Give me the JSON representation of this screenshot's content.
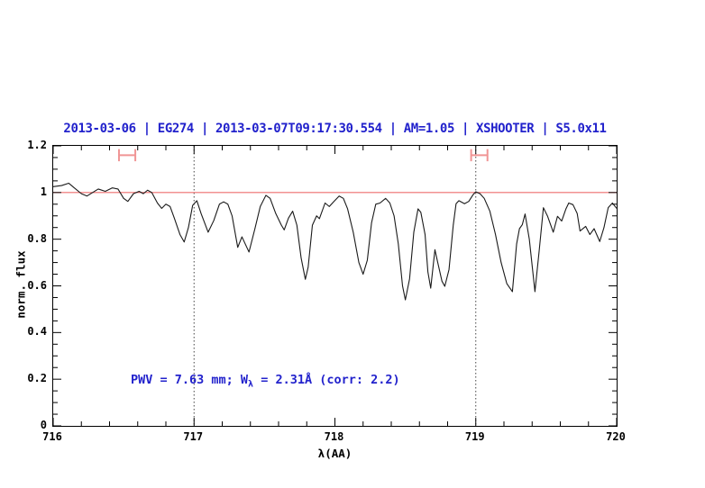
{
  "colors": {
    "accent_blue": "#2222cc",
    "reference_red": "#ee6e6e",
    "marker_red": "#f09595",
    "spectrum_black": "#1a1a1a",
    "guide_gray": "#444444"
  },
  "chart_data": {
    "type": "line",
    "title": "2013-03-06 | EG274 | 2013-03-07T09:17:30.554 | AM=1.05 | XSHOOTER | S5.0x11",
    "xlabel": "λ(AA)",
    "ylabel": "norm. flux",
    "xlim": [
      716,
      720
    ],
    "ylim": [
      0,
      1.2
    ],
    "x_major_ticks": [
      716,
      717,
      718,
      719,
      720
    ],
    "x_tick_labels": [
      "716",
      "717",
      "718",
      "719",
      "720"
    ],
    "x_minor_step": 0.2,
    "y_major_ticks": [
      0,
      0.2,
      0.4,
      0.6,
      0.8,
      1,
      1.2
    ],
    "y_tick_labels": [
      "0",
      "0.2",
      "0.4",
      "0.6",
      "0.8",
      "1",
      "1.2"
    ],
    "y_minor_step": 0.05,
    "grid": "off",
    "legend": "none",
    "reference_line": {
      "y": 1.0
    },
    "dotted_vlines": [
      717,
      719
    ],
    "error_markers": [
      {
        "x_center": 716.525,
        "x_half_width": 0.058,
        "y": 1.16,
        "cap_half_height": 0.026
      },
      {
        "x_center": 719.025,
        "x_half_width": 0.058,
        "y": 1.16,
        "cap_half_height": 0.026
      }
    ],
    "annotation": {
      "prefix": "PWV = 7.63 mm; W",
      "subscript": "λ",
      "suffix": " = 2.31Å (corr: 2.2)",
      "x": 716.55,
      "y": 0.19
    },
    "series": [
      {
        "name": "normalized telluric spectrum",
        "points": [
          [
            716.0,
            1.025
          ],
          [
            716.06,
            1.03
          ],
          [
            716.11,
            1.04
          ],
          [
            716.15,
            1.02
          ],
          [
            716.2,
            0.995
          ],
          [
            716.24,
            0.985
          ],
          [
            716.28,
            1.0
          ],
          [
            716.32,
            1.015
          ],
          [
            716.37,
            1.005
          ],
          [
            716.42,
            1.02
          ],
          [
            716.46,
            1.015
          ],
          [
            716.5,
            0.975
          ],
          [
            716.53,
            0.962
          ],
          [
            716.57,
            0.995
          ],
          [
            716.61,
            1.005
          ],
          [
            716.64,
            0.995
          ],
          [
            716.67,
            1.01
          ],
          [
            716.7,
            1.0
          ],
          [
            716.74,
            0.955
          ],
          [
            716.77,
            0.932
          ],
          [
            716.8,
            0.95
          ],
          [
            716.83,
            0.94
          ],
          [
            716.86,
            0.89
          ],
          [
            716.9,
            0.82
          ],
          [
            716.93,
            0.788
          ],
          [
            716.96,
            0.85
          ],
          [
            716.99,
            0.945
          ],
          [
            717.02,
            0.965
          ],
          [
            717.05,
            0.91
          ],
          [
            717.1,
            0.83
          ],
          [
            717.14,
            0.88
          ],
          [
            717.18,
            0.95
          ],
          [
            717.21,
            0.96
          ],
          [
            717.24,
            0.95
          ],
          [
            717.27,
            0.9
          ],
          [
            717.31,
            0.765
          ],
          [
            717.34,
            0.81
          ],
          [
            717.39,
            0.745
          ],
          [
            717.43,
            0.84
          ],
          [
            717.47,
            0.94
          ],
          [
            717.51,
            0.988
          ],
          [
            717.54,
            0.975
          ],
          [
            717.58,
            0.91
          ],
          [
            717.62,
            0.86
          ],
          [
            717.64,
            0.84
          ],
          [
            717.67,
            0.89
          ],
          [
            717.7,
            0.92
          ],
          [
            717.73,
            0.86
          ],
          [
            717.76,
            0.72
          ],
          [
            717.79,
            0.628
          ],
          [
            717.81,
            0.68
          ],
          [
            717.84,
            0.86
          ],
          [
            717.87,
            0.9
          ],
          [
            717.89,
            0.888
          ],
          [
            717.93,
            0.955
          ],
          [
            717.96,
            0.94
          ],
          [
            717.99,
            0.96
          ],
          [
            718.03,
            0.985
          ],
          [
            718.06,
            0.975
          ],
          [
            718.09,
            0.93
          ],
          [
            718.13,
            0.83
          ],
          [
            718.17,
            0.7
          ],
          [
            718.2,
            0.65
          ],
          [
            718.23,
            0.71
          ],
          [
            718.26,
            0.87
          ],
          [
            718.29,
            0.95
          ],
          [
            718.32,
            0.955
          ],
          [
            718.36,
            0.975
          ],
          [
            718.39,
            0.955
          ],
          [
            718.42,
            0.9
          ],
          [
            718.45,
            0.78
          ],
          [
            718.48,
            0.6
          ],
          [
            718.5,
            0.54
          ],
          [
            718.53,
            0.63
          ],
          [
            718.56,
            0.83
          ],
          [
            718.59,
            0.93
          ],
          [
            718.61,
            0.915
          ],
          [
            718.64,
            0.82
          ],
          [
            718.66,
            0.66
          ],
          [
            718.68,
            0.59
          ],
          [
            718.71,
            0.755
          ],
          [
            718.73,
            0.7
          ],
          [
            718.76,
            0.62
          ],
          [
            718.78,
            0.598
          ],
          [
            718.81,
            0.67
          ],
          [
            718.84,
            0.86
          ],
          [
            718.86,
            0.952
          ],
          [
            718.88,
            0.965
          ],
          [
            718.92,
            0.952
          ],
          [
            718.95,
            0.962
          ],
          [
            718.98,
            0.99
          ],
          [
            719.0,
            1.003
          ],
          [
            719.03,
            0.995
          ],
          [
            719.06,
            0.975
          ],
          [
            719.1,
            0.92
          ],
          [
            719.14,
            0.82
          ],
          [
            719.18,
            0.7
          ],
          [
            719.22,
            0.61
          ],
          [
            719.26,
            0.575
          ],
          [
            719.29,
            0.78
          ],
          [
            719.31,
            0.845
          ],
          [
            719.33,
            0.862
          ],
          [
            719.35,
            0.908
          ],
          [
            719.38,
            0.8
          ],
          [
            719.42,
            0.575
          ],
          [
            719.45,
            0.75
          ],
          [
            719.48,
            0.935
          ],
          [
            719.51,
            0.898
          ],
          [
            719.55,
            0.83
          ],
          [
            719.58,
            0.898
          ],
          [
            719.61,
            0.878
          ],
          [
            719.64,
            0.93
          ],
          [
            719.66,
            0.955
          ],
          [
            719.69,
            0.948
          ],
          [
            719.72,
            0.91
          ],
          [
            719.74,
            0.835
          ],
          [
            719.78,
            0.855
          ],
          [
            719.81,
            0.82
          ],
          [
            719.84,
            0.845
          ],
          [
            719.88,
            0.79
          ],
          [
            719.91,
            0.85
          ],
          [
            719.94,
            0.935
          ],
          [
            719.97,
            0.955
          ],
          [
            720.0,
            0.932
          ]
        ]
      }
    ]
  }
}
